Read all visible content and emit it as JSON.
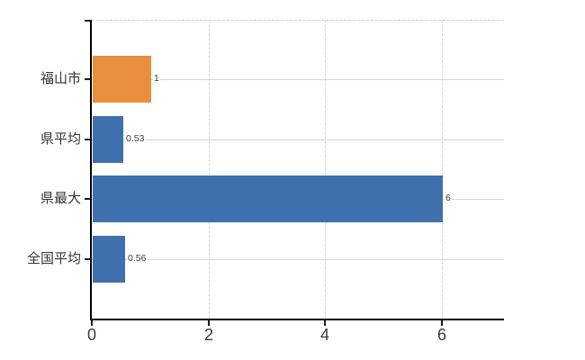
{
  "chart_data": {
    "type": "bar",
    "orientation": "horizontal",
    "title": "",
    "xlabel": "",
    "ylabel": "",
    "categories": [
      "福山市",
      "県平均",
      "県最大",
      "全国平均"
    ],
    "values": [
      1,
      0.53,
      6,
      0.56
    ],
    "value_labels": [
      "1",
      "0.53",
      "6",
      "0.56"
    ],
    "bar_colors": [
      "#e98f3b",
      "#3f70ae",
      "#3f70ae",
      "#3f70ae"
    ],
    "x_ticks": [
      0,
      2,
      4,
      6
    ],
    "x_tick_labels": [
      "0",
      "2",
      "4",
      "6"
    ],
    "xlim": [
      0,
      7.07
    ],
    "grid": true,
    "legend": false,
    "colors": {
      "bar_blue": "#3f70ae",
      "bar_orange": "#e98f3b",
      "gridline_horizontal": "#d3d9d3",
      "gridline_vertical": "#d6d4d8",
      "axis": "#000000",
      "tick_label_text": "#3a3a3a",
      "category_label_text": "#333333",
      "value_label_text": "#3c3c3c",
      "background": "#ffffff"
    }
  }
}
